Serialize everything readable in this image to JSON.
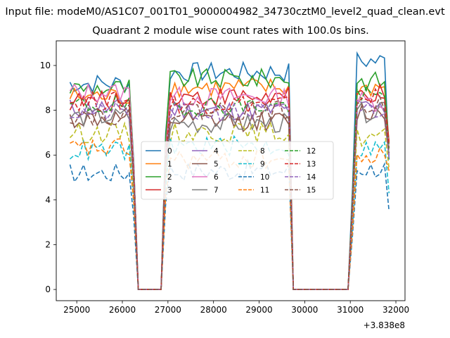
{
  "chart_data": {
    "type": "line",
    "title": "Input file: modeM0/AS1C07_001T01_9000004982_34730cztM0_level2_quad_clean.evt",
    "subtitle": "Quadrant 2 module wise count rates with 100.0s bins.",
    "xlabel": "",
    "ylabel": "",
    "x_offset_label": "+3.838e8",
    "xlim": [
      24550,
      32200
    ],
    "ylim": [
      -0.5,
      11.1
    ],
    "xticks": [
      25000,
      26000,
      27000,
      28000,
      29000,
      30000,
      31000,
      32000
    ],
    "yticks": [
      0,
      2,
      4,
      6,
      8,
      10
    ],
    "grid": false,
    "legend_position": "center",
    "legend_columns": 4,
    "colors": {
      "c0": "#1f77b4",
      "c1": "#ff7f0e",
      "c2": "#2ca02c",
      "c3": "#d62728",
      "c4": "#9467bd",
      "c5": "#8c564b",
      "c6": "#e377c2",
      "c7": "#7f7f7f",
      "c8": "#bcbd22",
      "c9": "#17becf"
    },
    "segments": [
      {
        "x_start": 24850,
        "x_end": 26250
      },
      {
        "x_start": 26950,
        "x_end": 29650
      },
      {
        "x_start": 31050,
        "x_end": 31850
      }
    ],
    "gaps": [
      {
        "x_start": 26350,
        "x_end": 26850
      },
      {
        "x_start": 29750,
        "x_end": 30950
      }
    ],
    "series": [
      {
        "name": "0",
        "color": "#1f77b4",
        "dash": "solid",
        "levels": [
          9.2,
          9.7,
          10.2
        ],
        "end": 5.8
      },
      {
        "name": "1",
        "color": "#ff7f0e",
        "dash": "solid",
        "levels": [
          8.6,
          9.0,
          9.0
        ],
        "end": 6.3
      },
      {
        "name": "2",
        "color": "#2ca02c",
        "dash": "solid",
        "levels": [
          9.0,
          9.4,
          9.3
        ],
        "end": 6.5
      },
      {
        "name": "3",
        "color": "#d62728",
        "dash": "solid",
        "levels": [
          8.4,
          8.6,
          8.7
        ],
        "end": 6.6
      },
      {
        "name": "4",
        "color": "#9467bd",
        "dash": "solid",
        "levels": [
          8.1,
          8.0,
          8.1
        ],
        "end": 5.9
      },
      {
        "name": "5",
        "color": "#8c564b",
        "dash": "solid",
        "levels": [
          7.6,
          7.5,
          7.9
        ],
        "end": 6.0
      },
      {
        "name": "6",
        "color": "#e377c2",
        "dash": "solid",
        "levels": [
          8.8,
          8.6,
          8.4
        ],
        "end": 6.4
      },
      {
        "name": "7",
        "color": "#7f7f7f",
        "dash": "solid",
        "levels": [
          7.7,
          7.4,
          7.9
        ],
        "end": 6.0
      },
      {
        "name": "8",
        "color": "#bcbd22",
        "dash": "dashed",
        "levels": [
          7.0,
          7.0,
          6.8
        ],
        "end": 5.4
      },
      {
        "name": "9",
        "color": "#17becf",
        "dash": "dashed",
        "levels": [
          6.2,
          6.4,
          6.3
        ],
        "end": 4.3
      },
      {
        "name": "10",
        "color": "#1f77b4",
        "dash": "dashed",
        "levels": [
          5.2,
          5.3,
          5.4
        ],
        "end": 3.5
      },
      {
        "name": "11",
        "color": "#ff7f0e",
        "dash": "dashed",
        "levels": [
          6.3,
          5.8,
          5.9
        ],
        "end": 5.3
      },
      {
        "name": "12",
        "color": "#2ca02c",
        "dash": "dashed",
        "levels": [
          8.2,
          8.2,
          8.6
        ],
        "end": 6.3
      },
      {
        "name": "13",
        "color": "#d62728",
        "dash": "dashed",
        "levels": [
          8.4,
          8.3,
          8.6
        ],
        "end": 6.5
      },
      {
        "name": "14",
        "color": "#9467bd",
        "dash": "dashed",
        "levels": [
          7.9,
          7.9,
          8.0
        ],
        "end": 5.9
      },
      {
        "name": "15",
        "color": "#8c564b",
        "dash": "dashed",
        "levels": [
          7.8,
          8.0,
          8.2
        ],
        "end": 6.1
      }
    ]
  }
}
